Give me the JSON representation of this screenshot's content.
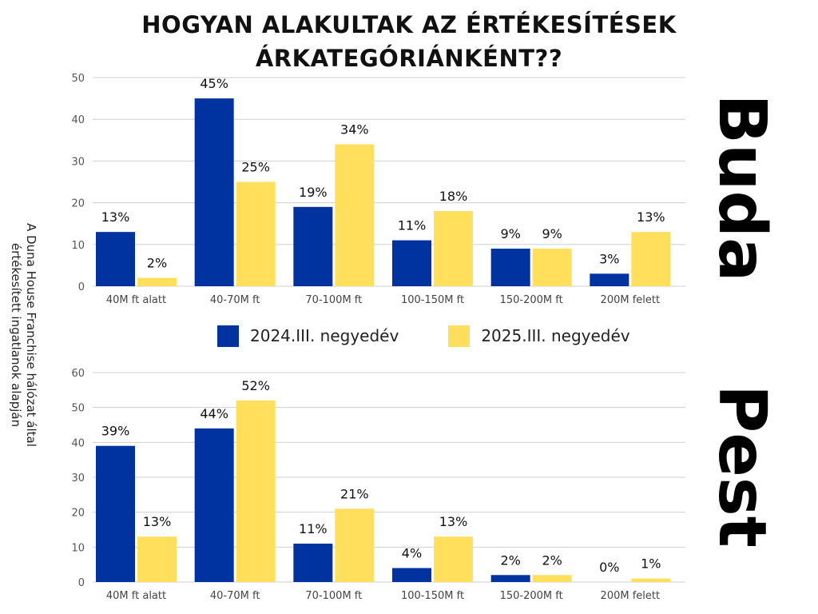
{
  "title_lines": [
    "HOGYAN ALAKULTAK AZ ÉRTÉKESÍTÉSEK",
    "ÁRKATEGÓRIÁNKÉNT??"
  ],
  "source_note": "A Duna House Franchise hálózat által értékesített ingatlanok alapján",
  "legend": {
    "series1": "2024.III. negyedév",
    "series2": "2025.III. negyedév"
  },
  "colors": {
    "series1": "#0033a0",
    "series2": "#ffdf5c"
  },
  "chart_data": [
    {
      "type": "bar",
      "title": "Buda",
      "categories": [
        "40M ft alatt",
        "40-70M ft",
        "70-100M ft",
        "100-150M ft",
        "150-200M ft",
        "200M felett"
      ],
      "series": [
        {
          "name": "2024.III. negyedév",
          "values": [
            13,
            45,
            19,
            11,
            9,
            3
          ],
          "labels": [
            "13%",
            "45%",
            "19%",
            "11%",
            "9%",
            "3%"
          ]
        },
        {
          "name": "2025.III. negyedév",
          "values": [
            2,
            25,
            34,
            18,
            9,
            13
          ],
          "labels": [
            "2%",
            "25%",
            "34%",
            "18%",
            "9%",
            "13%"
          ]
        }
      ],
      "ylim": [
        0,
        50
      ],
      "yticks": [
        "0",
        "10",
        "20",
        "30",
        "40",
        "50"
      ],
      "grid": true
    },
    {
      "type": "bar",
      "title": "Pest",
      "categories": [
        "40M ft alatt",
        "40-70M ft",
        "70-100M ft",
        "100-150M ft",
        "150-200M ft",
        "200M felett"
      ],
      "series": [
        {
          "name": "2024.III. negyedév",
          "values": [
            39,
            44,
            11,
            4,
            2,
            0
          ],
          "labels": [
            "39%",
            "44%",
            "11%",
            "4%",
            "2%",
            "0%"
          ]
        },
        {
          "name": "2025.III. negyedév",
          "values": [
            13,
            52,
            21,
            13,
            2,
            1
          ],
          "labels": [
            "13%",
            "52%",
            "21%",
            "13%",
            "2%",
            "1%"
          ]
        }
      ],
      "ylim": [
        0,
        60
      ],
      "yticks": [
        "0",
        "10",
        "20",
        "30",
        "40",
        "50",
        "60"
      ],
      "grid": true
    }
  ]
}
